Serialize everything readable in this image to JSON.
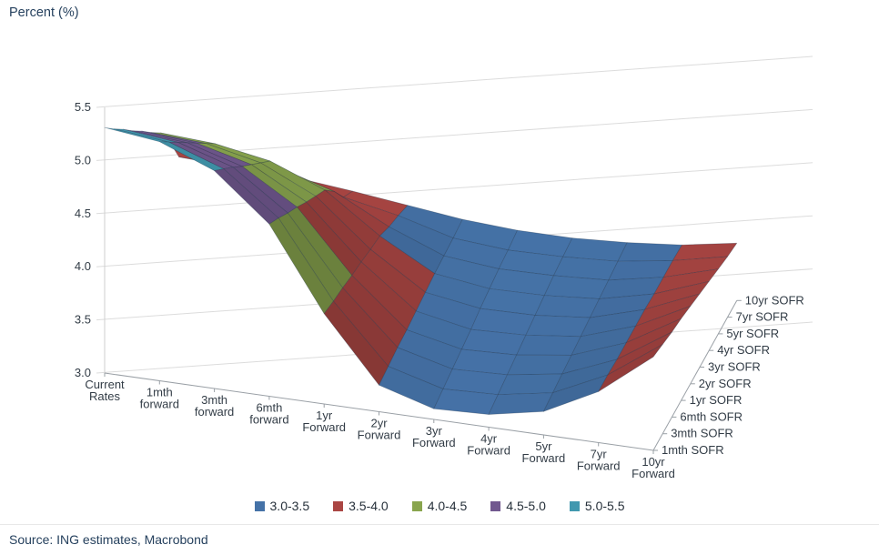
{
  "footer": {
    "source": "Source: ING estimates, Macrobond"
  },
  "chart_data": {
    "type": "surface3d",
    "title": "Percent (%)",
    "x_axis": {
      "categories": [
        "Current Rates",
        "1mth forward",
        "3mth forward",
        "6mth forward",
        "1yr Forward",
        "2yr Forward",
        "3yr Forward",
        "4yr Forward",
        "5yr Forward",
        "7yr Forward",
        "10yr Forward"
      ]
    },
    "depth_axis": {
      "categories": [
        "1mth SOFR",
        "3mth SOFR",
        "6mth SOFR",
        "1yr SOFR",
        "2yr SOFR",
        "3yr SOFR",
        "4yr SOFR",
        "5yr SOFR",
        "7yr SOFR",
        "10yr SOFR"
      ]
    },
    "y_axis": {
      "min": 3.0,
      "max": 5.5,
      "ticks": [
        "3.0",
        "3.5",
        "4.0",
        "4.5",
        "5.0",
        "5.5"
      ]
    },
    "bands": [
      {
        "label": "3.0-3.5",
        "max": 3.5,
        "color": "#4572A7"
      },
      {
        "label": "3.5-4.0",
        "max": 4.0,
        "color": "#AA4643"
      },
      {
        "label": "4.0-4.5",
        "max": 4.5,
        "color": "#89A54E"
      },
      {
        "label": "4.5-5.0",
        "max": 5.0,
        "color": "#71588F"
      },
      {
        "label": "5.0-5.5",
        "max": 5.5,
        "color": "#4198AF"
      }
    ],
    "series": [
      {
        "name": "1mth SOFR",
        "values": [
          5.31,
          5.25,
          5.05,
          4.62,
          3.85,
          3.25,
          3.1,
          3.12,
          3.22,
          3.48,
          3.88
        ]
      },
      {
        "name": "3mth SOFR",
        "values": [
          5.14,
          5.09,
          4.91,
          4.52,
          3.81,
          3.27,
          3.13,
          3.15,
          3.24,
          3.48,
          3.84
        ]
      },
      {
        "name": "6mth SOFR",
        "values": [
          4.98,
          4.93,
          4.77,
          4.41,
          3.78,
          3.29,
          3.16,
          3.18,
          3.26,
          3.47,
          3.8
        ]
      },
      {
        "name": "1yr SOFR",
        "values": [
          4.81,
          4.77,
          4.62,
          4.31,
          3.74,
          3.3,
          3.19,
          3.21,
          3.28,
          3.47,
          3.77
        ]
      },
      {
        "name": "2yr SOFR",
        "values": [
          4.65,
          4.61,
          4.48,
          4.2,
          3.71,
          3.32,
          3.22,
          3.24,
          3.3,
          3.47,
          3.73
        ]
      },
      {
        "name": "3yr SOFR",
        "values": [
          4.48,
          4.45,
          4.34,
          4.1,
          3.67,
          3.34,
          3.26,
          3.27,
          3.32,
          3.47,
          3.69
        ]
      },
      {
        "name": "4yr SOFR",
        "values": [
          4.32,
          4.29,
          4.2,
          4.0,
          3.64,
          3.36,
          3.29,
          3.3,
          3.34,
          3.46,
          3.65
        ]
      },
      {
        "name": "5yr SOFR",
        "values": [
          4.08,
          4.05,
          3.98,
          3.83,
          3.57,
          3.37,
          3.32,
          3.33,
          3.36,
          3.46,
          3.61
        ]
      },
      {
        "name": "7yr SOFR",
        "values": [
          3.78,
          3.76,
          3.71,
          3.62,
          3.52,
          3.38,
          3.34,
          3.35,
          3.38,
          3.46,
          3.57
        ]
      },
      {
        "name": "10yr SOFR",
        "values": [
          3.62,
          3.6,
          3.57,
          3.52,
          3.46,
          3.4,
          3.37,
          3.37,
          3.4,
          3.45,
          3.54
        ]
      }
    ],
    "legend_position": "bottom",
    "grid": true
  }
}
